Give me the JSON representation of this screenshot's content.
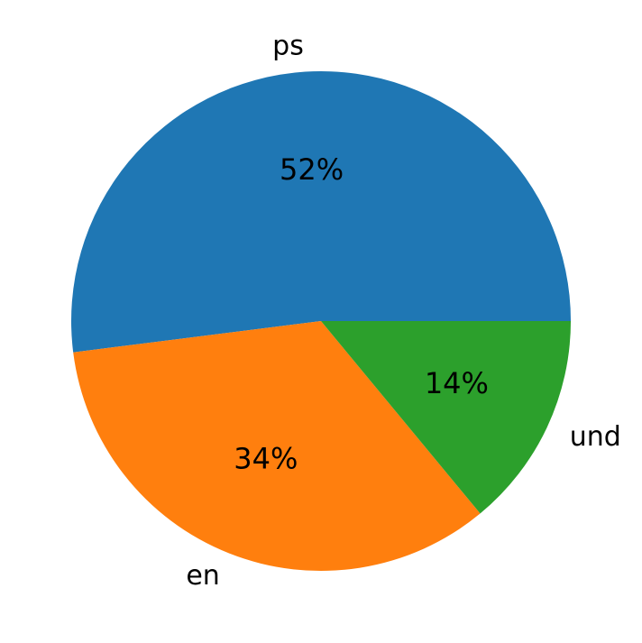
{
  "chart_data": {
    "type": "pie",
    "categories": [
      "ps",
      "en",
      "und"
    ],
    "values": [
      52,
      34,
      14
    ],
    "value_labels": [
      "52%",
      "34%",
      "14%"
    ],
    "colors": [
      "#1f77b4",
      "#ff7f0e",
      "#2ca02c"
    ],
    "start_angle": 0
  }
}
